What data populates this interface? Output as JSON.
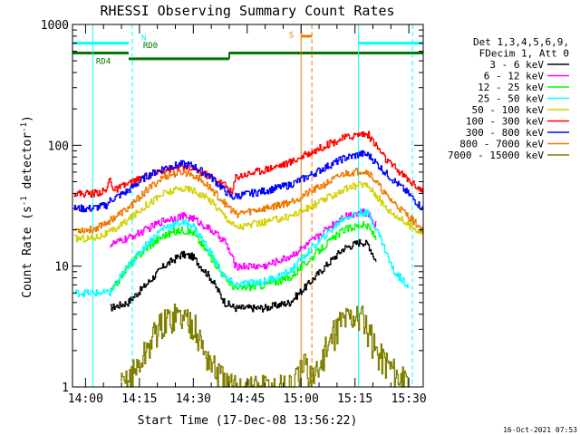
{
  "chart_data": {
    "type": "line",
    "title": "RHESSI Observing Summary Count Rates",
    "xlabel": "Start Time (17-Dec-08 13:56:22)",
    "ylabel": "Count Rate (s",
    "ylabel_sup": "-1",
    "ylabel_mid": " detector",
    "ylabel_end": ")",
    "yscale": "log",
    "ylim": [
      1,
      1000
    ],
    "xlim": [
      "13:56:22",
      "15:34:00"
    ],
    "x_ticks": [
      "14:00",
      "14:15",
      "14:30",
      "14:45",
      "15:00",
      "15:15",
      "15:30"
    ],
    "y_ticks": [
      "1",
      "10",
      "100",
      "1000"
    ],
    "timestamp": "16-Oct-2021 07:53",
    "legend_header": [
      "Det 1,3,4,5,6,9,",
      "FDecim 1, Att 0"
    ],
    "flag_labels": {
      "saa": "S",
      "night": "N",
      "rd0": "RD0",
      "rd4": "RD4"
    },
    "flag_colors": {
      "saa": "#f07800",
      "night": "#00ffff",
      "rd": "#007800"
    },
    "background": "#ffffff",
    "axis_color": "#000000",
    "series": [
      {
        "name": "3 - 6 keV",
        "color": "#000000",
        "points": [
          [
            "14:07",
            4.5
          ],
          [
            "14:12",
            5
          ],
          [
            "14:17",
            7
          ],
          [
            "14:22",
            10
          ],
          [
            "14:27",
            12.5
          ],
          [
            "14:30",
            12
          ],
          [
            "14:35",
            8
          ],
          [
            "14:39",
            5
          ],
          [
            "14:42",
            4.5
          ],
          [
            "14:50",
            4.5
          ],
          [
            "14:57",
            5
          ],
          [
            "15:02",
            7
          ],
          [
            "15:07",
            10
          ],
          [
            "15:12",
            14
          ],
          [
            "15:17",
            16
          ],
          [
            "15:19",
            15
          ],
          [
            "15:21",
            11
          ]
        ]
      },
      {
        "name": "6 - 12 keV",
        "color": "#ff00ff",
        "points": [
          [
            "14:07",
            15
          ],
          [
            "14:12",
            17
          ],
          [
            "14:17",
            20
          ],
          [
            "14:22",
            24
          ],
          [
            "14:27",
            26
          ],
          [
            "14:30",
            25
          ],
          [
            "14:35",
            20
          ],
          [
            "14:39",
            16
          ],
          [
            "14:42",
            10
          ],
          [
            "14:50",
            10
          ],
          [
            "14:57",
            12
          ],
          [
            "15:02",
            15
          ],
          [
            "15:07",
            20
          ],
          [
            "15:12",
            26
          ],
          [
            "15:17",
            28
          ],
          [
            "15:19",
            27
          ],
          [
            "15:21",
            22
          ]
        ]
      },
      {
        "name": "12 - 25 keV",
        "color": "#00ff00",
        "points": [
          [
            "14:07",
            6
          ],
          [
            "14:12",
            10
          ],
          [
            "14:17",
            14
          ],
          [
            "14:22",
            18
          ],
          [
            "14:27",
            20
          ],
          [
            "14:30",
            19
          ],
          [
            "14:35",
            12
          ],
          [
            "14:39",
            8
          ],
          [
            "14:42",
            6.5
          ],
          [
            "14:50",
            7
          ],
          [
            "14:57",
            8
          ],
          [
            "15:02",
            11
          ],
          [
            "15:07",
            15
          ],
          [
            "15:12",
            20
          ],
          [
            "15:17",
            22
          ],
          [
            "15:19",
            21
          ],
          [
            "15:21",
            17
          ]
        ]
      },
      {
        "name": "25 - 50 keV",
        "color": "#00ffff",
        "points": [
          [
            "13:57",
            6
          ],
          [
            "14:02",
            6
          ],
          [
            "14:07",
            6
          ],
          [
            "14:12",
            10
          ],
          [
            "14:17",
            15
          ],
          [
            "14:22",
            21
          ],
          [
            "14:27",
            23
          ],
          [
            "14:30",
            22
          ],
          [
            "14:35",
            13
          ],
          [
            "14:39",
            8
          ],
          [
            "14:42",
            7
          ],
          [
            "14:50",
            7.5
          ],
          [
            "14:57",
            9
          ],
          [
            "15:02",
            13
          ],
          [
            "15:07",
            18
          ],
          [
            "15:12",
            25
          ],
          [
            "15:17",
            28
          ],
          [
            "15:19",
            27
          ],
          [
            "15:22",
            18
          ],
          [
            "15:26",
            9
          ],
          [
            "15:30",
            7
          ]
        ]
      },
      {
        "name": "50 - 100 keV",
        "color": "#d2d200",
        "points": [
          [
            "13:57",
            17
          ],
          [
            "14:02",
            17
          ],
          [
            "14:07",
            19
          ],
          [
            "14:12",
            24
          ],
          [
            "14:17",
            32
          ],
          [
            "14:22",
            40
          ],
          [
            "14:27",
            44
          ],
          [
            "14:30",
            43
          ],
          [
            "14:35",
            35
          ],
          [
            "14:39",
            26
          ],
          [
            "14:42",
            21
          ],
          [
            "14:50",
            23
          ],
          [
            "14:57",
            26
          ],
          [
            "15:02",
            30
          ],
          [
            "15:07",
            36
          ],
          [
            "15:12",
            43
          ],
          [
            "15:17",
            48
          ],
          [
            "15:19",
            46
          ],
          [
            "15:24",
            30
          ],
          [
            "15:30",
            22
          ],
          [
            "15:34",
            19
          ]
        ]
      },
      {
        "name": "100 - 300 keV",
        "color": "#ff0000",
        "points": [
          [
            "13:57",
            40
          ],
          [
            "14:02",
            40
          ],
          [
            "14:06",
            42
          ],
          [
            "14:07",
            55
          ],
          [
            "14:08",
            42
          ],
          [
            "14:12",
            48
          ],
          [
            "14:17",
            55
          ],
          [
            "14:22",
            63
          ],
          [
            "14:27",
            66
          ],
          [
            "14:30",
            64
          ],
          [
            "14:35",
            55
          ],
          [
            "14:39",
            47
          ],
          [
            "14:41",
            40
          ],
          [
            "14:42",
            55
          ],
          [
            "14:50",
            63
          ],
          [
            "14:57",
            72
          ],
          [
            "15:02",
            85
          ],
          [
            "15:07",
            100
          ],
          [
            "15:12",
            115
          ],
          [
            "15:17",
            125
          ],
          [
            "15:19",
            122
          ],
          [
            "15:24",
            75
          ],
          [
            "15:30",
            52
          ],
          [
            "15:34",
            42
          ]
        ]
      },
      {
        "name": "300 - 800 keV",
        "color": "#0000ff",
        "points": [
          [
            "13:57",
            30
          ],
          [
            "14:02",
            30
          ],
          [
            "14:06",
            32
          ],
          [
            "14:07",
            35
          ],
          [
            "14:12",
            42
          ],
          [
            "14:17",
            55
          ],
          [
            "14:22",
            65
          ],
          [
            "14:27",
            70
          ],
          [
            "14:30",
            68
          ],
          [
            "14:35",
            55
          ],
          [
            "14:39",
            42
          ],
          [
            "14:41",
            37
          ],
          [
            "14:42",
            38
          ],
          [
            "14:50",
            42
          ],
          [
            "14:57",
            47
          ],
          [
            "15:02",
            55
          ],
          [
            "15:07",
            66
          ],
          [
            "15:12",
            78
          ],
          [
            "15:17",
            85
          ],
          [
            "15:19",
            83
          ],
          [
            "15:24",
            58
          ],
          [
            "15:30",
            40
          ],
          [
            "15:34",
            30
          ]
        ]
      },
      {
        "name": "800 - 7000 keV",
        "color": "#f07800",
        "points": [
          [
            "13:57",
            20
          ],
          [
            "14:02",
            20
          ],
          [
            "14:07",
            24
          ],
          [
            "14:12",
            30
          ],
          [
            "14:17",
            42
          ],
          [
            "14:22",
            55
          ],
          [
            "14:27",
            60
          ],
          [
            "14:30",
            58
          ],
          [
            "14:35",
            44
          ],
          [
            "14:39",
            33
          ],
          [
            "14:42",
            27
          ],
          [
            "14:50",
            30
          ],
          [
            "14:57",
            34
          ],
          [
            "15:02",
            40
          ],
          [
            "15:07",
            48
          ],
          [
            "15:12",
            58
          ],
          [
            "15:17",
            62
          ],
          [
            "15:19",
            60
          ],
          [
            "15:24",
            38
          ],
          [
            "15:30",
            26
          ],
          [
            "15:34",
            20
          ]
        ]
      },
      {
        "name": "7000 - 15000 keV",
        "color": "#808000",
        "points": [
          [
            "14:10",
            1
          ],
          [
            "14:15",
            1.5
          ],
          [
            "14:20",
            3
          ],
          [
            "14:25",
            4
          ],
          [
            "14:30",
            3.5
          ],
          [
            "14:33",
            2
          ],
          [
            "14:37",
            1.3
          ],
          [
            "14:40",
            1
          ],
          [
            "14:58",
            1
          ],
          [
            "15:01",
            1.5
          ],
          [
            "15:04",
            1.2
          ],
          [
            "15:07",
            2
          ],
          [
            "15:11",
            3.5
          ],
          [
            "15:15",
            4
          ],
          [
            "15:18",
            3.5
          ],
          [
            "15:21",
            2
          ],
          [
            "15:25",
            1.5
          ],
          [
            "15:30",
            1
          ]
        ]
      }
    ]
  }
}
